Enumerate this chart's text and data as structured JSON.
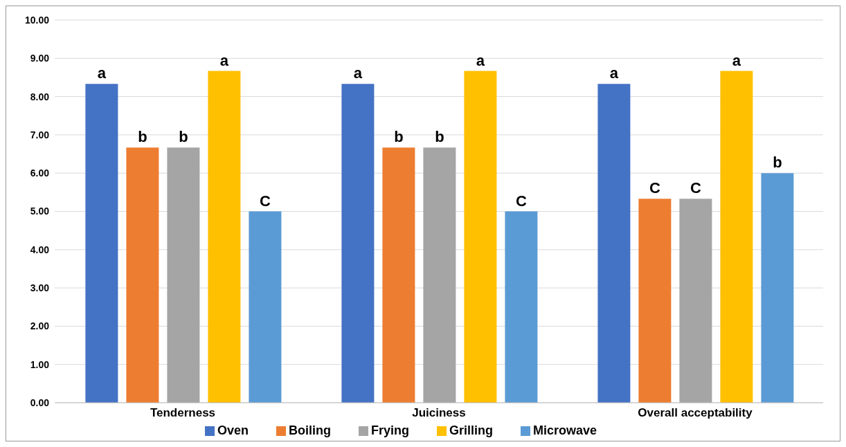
{
  "chart_data": {
    "type": "bar",
    "categories": [
      "Tenderness",
      "Juiciness",
      "Overall acceptability"
    ],
    "series": [
      {
        "name": "Oven",
        "color": "#4472c4",
        "values": [
          8.33,
          8.33,
          8.33
        ],
        "value_labels": [
          "a",
          "a",
          "a"
        ]
      },
      {
        "name": "Boiling",
        "color": "#ed7d31",
        "values": [
          6.67,
          6.67,
          5.33
        ],
        "value_labels": [
          "b",
          "b",
          "C"
        ]
      },
      {
        "name": "Frying",
        "color": "#a5a5a5",
        "values": [
          6.67,
          6.67,
          5.33
        ],
        "value_labels": [
          "b",
          "b",
          "C"
        ]
      },
      {
        "name": "Grilling",
        "color": "#ffc000",
        "values": [
          8.67,
          8.67,
          8.67
        ],
        "value_labels": [
          "a",
          "a",
          "a"
        ]
      },
      {
        "name": "Microwave",
        "color": "#5b9bd5",
        "values": [
          5.0,
          5.0,
          6.0
        ],
        "value_labels": [
          "C",
          "C",
          "b"
        ]
      }
    ],
    "ylim": [
      0,
      10
    ],
    "yticks": [
      {
        "value": 0,
        "label": "0.00"
      },
      {
        "value": 1,
        "label": "1.00"
      },
      {
        "value": 2,
        "label": "2.00"
      },
      {
        "value": 3,
        "label": "3.00"
      },
      {
        "value": 4,
        "label": "4.00"
      },
      {
        "value": 5,
        "label": "5.00"
      },
      {
        "value": 6,
        "label": "6.00"
      },
      {
        "value": 7,
        "label": "7.00"
      },
      {
        "value": 8,
        "label": "8.00"
      },
      {
        "value": 9,
        "label": "9.00"
      },
      {
        "value": 10,
        "label": "10.00"
      }
    ],
    "grid": "y",
    "legend": "bottom"
  }
}
